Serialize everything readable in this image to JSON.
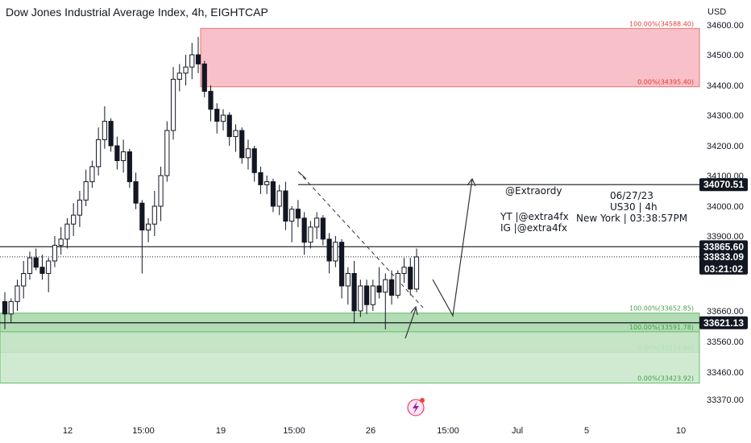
{
  "header": {
    "title": "Dow Jones Industrial Average Index, 4h, EIGHTCAP"
  },
  "chart_data": {
    "type": "candlestick",
    "title": "Dow Jones Industrial Average Index, 4h, EIGHTCAP",
    "currency": "USD",
    "y_ticks": [
      34600,
      34500,
      34400,
      34300,
      34200,
      34100,
      34000,
      33900,
      33660,
      33560,
      33460,
      33370
    ],
    "y_tick_labels": [
      "34600.00",
      "34500.00",
      "34400.00",
      "34300.00",
      "34200.00",
      "34100.00",
      "34000.00",
      "33900.00",
      "33660.00",
      "33560.00",
      "33460.00",
      "33370.00"
    ],
    "x_ticks": [
      "12",
      "15:00",
      "19",
      "15:00",
      "26",
      "15:00",
      "Jul",
      "5",
      "10"
    ],
    "price_tags": [
      {
        "value": "34070.51",
        "style": "black"
      },
      {
        "value": "33865.60",
        "style": "black"
      },
      {
        "value": "33833.09",
        "style": "black",
        "sub": "03:21:02"
      },
      {
        "value": "33621.13",
        "style": "black"
      }
    ],
    "zones": [
      {
        "name": "supply",
        "color": "#f7b6bf",
        "top": 34588.4,
        "bottom": 34395.4,
        "top_label": "100.00%(34588.40)",
        "bottom_label": "0.00%(34395.40)"
      },
      {
        "name": "demand-1",
        "color": "#a5d6a7",
        "top": 33652.85,
        "bottom": 33524.66,
        "top_label": "100.00%(33652.85)",
        "bottom_label": "0.00%(33524.66)"
      },
      {
        "name": "demand-2",
        "color": "#c8e6c9",
        "top": 33591.78,
        "bottom": 33423.92,
        "top_label": "100.00%(33591.78)",
        "bottom_label": "0.00%(33423.92)"
      }
    ],
    "horizontal_lines": [
      34070.51,
      33865.6,
      33621.13
    ],
    "annotations": {
      "handle": "@Extraordy",
      "yt": "YT |@extra4fx",
      "ig": "IG |@extra4fx",
      "date": "06/27/23",
      "symbol": "US30 | 4h",
      "time": "New York | 03:38:57PM"
    },
    "candles": [
      [
        33690,
        33720,
        33600,
        33650
      ],
      [
        33650,
        33700,
        33620,
        33690
      ],
      [
        33690,
        33760,
        33660,
        33740
      ],
      [
        33740,
        33820,
        33700,
        33780
      ],
      [
        33780,
        33850,
        33760,
        33830
      ],
      [
        33830,
        33860,
        33790,
        33800
      ],
      [
        33800,
        33840,
        33760,
        33780
      ],
      [
        33780,
        33830,
        33720,
        33820
      ],
      [
        33820,
        33900,
        33800,
        33870
      ],
      [
        33870,
        33930,
        33840,
        33890
      ],
      [
        33890,
        33960,
        33860,
        33940
      ],
      [
        33940,
        34010,
        33900,
        33970
      ],
      [
        33970,
        34050,
        33930,
        34020
      ],
      [
        34020,
        34120,
        34000,
        34080
      ],
      [
        34080,
        34150,
        34060,
        34130
      ],
      [
        34130,
        34260,
        34100,
        34220
      ],
      [
        34220,
        34330,
        34190,
        34280
      ],
      [
        34280,
        34290,
        34180,
        34200
      ],
      [
        34200,
        34230,
        34120,
        34150
      ],
      [
        34150,
        34220,
        34110,
        34180
      ],
      [
        34180,
        34190,
        34060,
        34080
      ],
      [
        34080,
        34110,
        33990,
        34010
      ],
      [
        34010,
        34020,
        33780,
        33920
      ],
      [
        33920,
        33960,
        33880,
        33940
      ],
      [
        33940,
        34050,
        33900,
        34000
      ],
      [
        34000,
        34130,
        33950,
        34100
      ],
      [
        34100,
        34280,
        34080,
        34250
      ],
      [
        34250,
        34460,
        34220,
        34420
      ],
      [
        34420,
        34470,
        34380,
        34440
      ],
      [
        34440,
        34500,
        34400,
        34460
      ],
      [
        34460,
        34540,
        34420,
        34500
      ],
      [
        34500,
        34560,
        34440,
        34470
      ],
      [
        34470,
        34480,
        34360,
        34380
      ],
      [
        34380,
        34400,
        34280,
        34320
      ],
      [
        34320,
        34340,
        34240,
        34280
      ],
      [
        34280,
        34320,
        34250,
        34300
      ],
      [
        34300,
        34310,
        34200,
        34230
      ],
      [
        34230,
        34270,
        34180,
        34250
      ],
      [
        34250,
        34260,
        34140,
        34160
      ],
      [
        34160,
        34220,
        34120,
        34190
      ],
      [
        34190,
        34200,
        34080,
        34110
      ],
      [
        34110,
        34130,
        34040,
        34070
      ],
      [
        34070,
        34100,
        34040,
        34080
      ],
      [
        34080,
        34090,
        33980,
        34000
      ],
      [
        34000,
        34070,
        33970,
        34050
      ],
      [
        34050,
        34080,
        33920,
        33950
      ],
      [
        33950,
        34000,
        33880,
        33990
      ],
      [
        33990,
        34020,
        33930,
        33960
      ],
      [
        33960,
        33980,
        33840,
        33880
      ],
      [
        33880,
        33950,
        33860,
        33930
      ],
      [
        33930,
        33980,
        33890,
        33960
      ],
      [
        33960,
        33970,
        33870,
        33890
      ],
      [
        33890,
        33910,
        33780,
        33820
      ],
      [
        33820,
        33900,
        33800,
        33880
      ],
      [
        33880,
        33890,
        33700,
        33740
      ],
      [
        33740,
        33800,
        33680,
        33780
      ],
      [
        33780,
        33820,
        33620,
        33660
      ],
      [
        33660,
        33760,
        33640,
        33740
      ],
      [
        33740,
        33760,
        33650,
        33680
      ],
      [
        33680,
        33760,
        33660,
        33740
      ],
      [
        33740,
        33800,
        33700,
        33720
      ],
      [
        33720,
        33780,
        33600,
        33760
      ],
      [
        33760,
        33790,
        33680,
        33710
      ],
      [
        33710,
        33790,
        33700,
        33780
      ],
      [
        33780,
        33830,
        33750,
        33800
      ],
      [
        33800,
        33830,
        33710,
        33730
      ],
      [
        33730,
        33860,
        33720,
        33833
      ]
    ]
  }
}
